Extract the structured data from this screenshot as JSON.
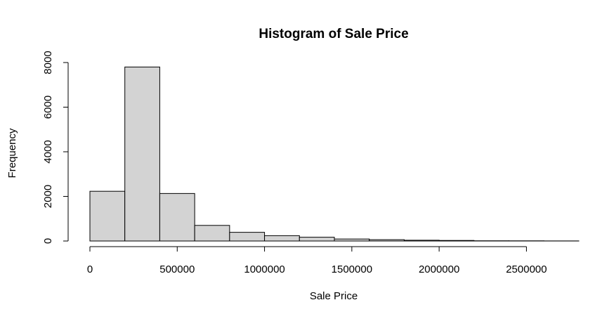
{
  "chart_data": {
    "type": "bar",
    "title": "Histogram of Sale Price",
    "xlabel": "Sale Price",
    "ylabel": "Frequency",
    "bin_width": 200000,
    "bins": [
      {
        "start": 0,
        "end": 200000,
        "count": 2230
      },
      {
        "start": 200000,
        "end": 400000,
        "count": 7800
      },
      {
        "start": 400000,
        "end": 600000,
        "count": 2130
      },
      {
        "start": 600000,
        "end": 800000,
        "count": 700
      },
      {
        "start": 800000,
        "end": 1000000,
        "count": 390
      },
      {
        "start": 1000000,
        "end": 1200000,
        "count": 240
      },
      {
        "start": 1200000,
        "end": 1400000,
        "count": 170
      },
      {
        "start": 1400000,
        "end": 1600000,
        "count": 90
      },
      {
        "start": 1600000,
        "end": 1800000,
        "count": 60
      },
      {
        "start": 1800000,
        "end": 2000000,
        "count": 35
      },
      {
        "start": 2000000,
        "end": 2200000,
        "count": 25
      },
      {
        "start": 2200000,
        "end": 2400000,
        "count": 10
      },
      {
        "start": 2400000,
        "end": 2600000,
        "count": 8
      },
      {
        "start": 2600000,
        "end": 2800000,
        "count": 4
      }
    ],
    "xlim": [
      0,
      2800000
    ],
    "ylim": [
      0,
      8000
    ],
    "x_ticks": [
      0,
      500000,
      1000000,
      1500000,
      2000000,
      2500000
    ],
    "x_tick_labels": [
      "0",
      "500000",
      "1000000",
      "1500000",
      "2000000",
      "2500000"
    ],
    "y_ticks": [
      0,
      2000,
      4000,
      6000,
      8000
    ],
    "y_tick_labels": [
      "0",
      "2000",
      "4000",
      "6000",
      "8000"
    ],
    "grid": false,
    "colors": {
      "bar_fill": "#d3d3d3",
      "bar_stroke": "#000000"
    }
  }
}
